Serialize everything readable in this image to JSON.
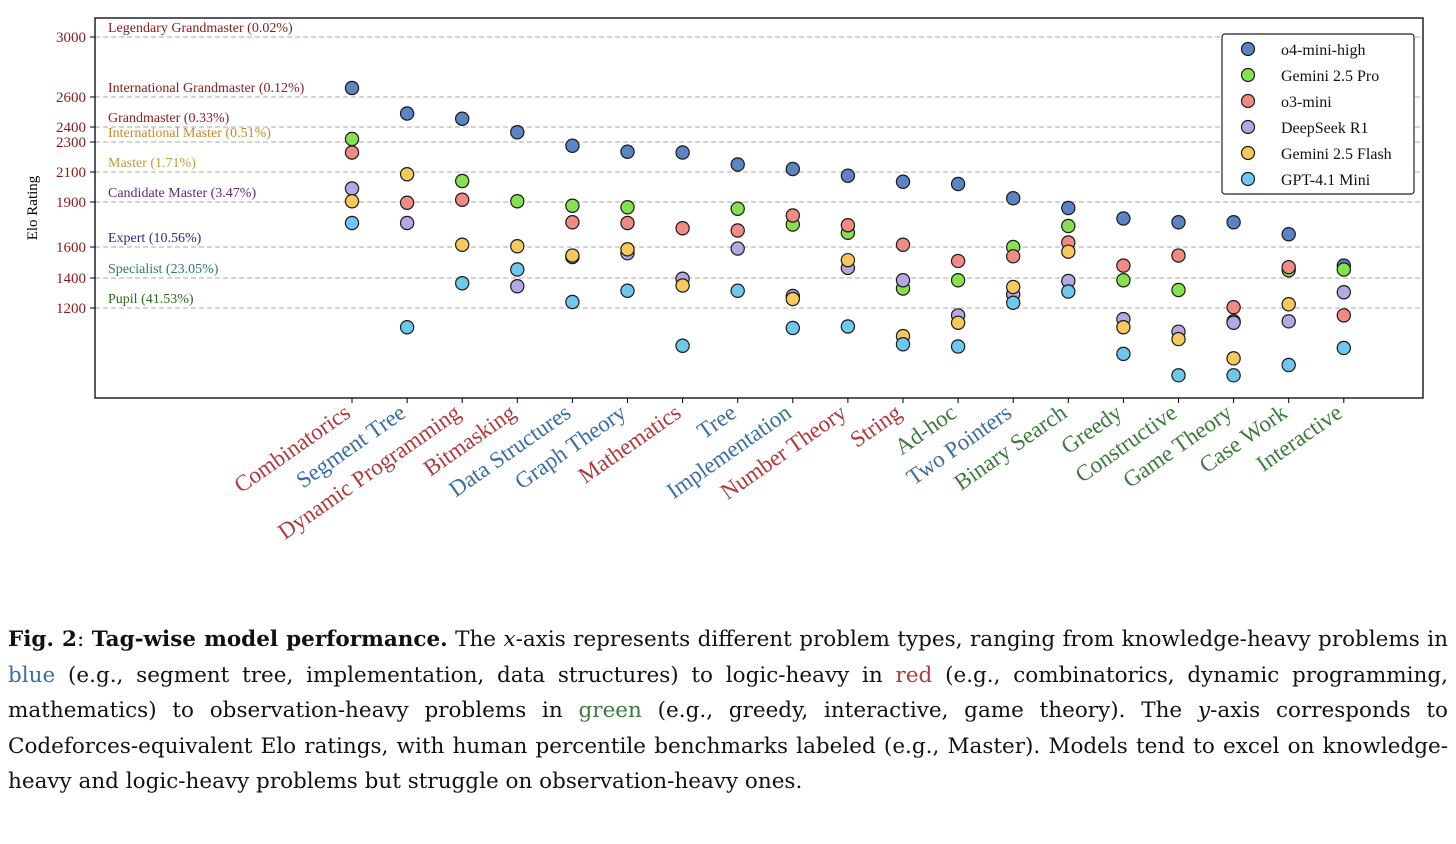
{
  "chart_data": {
    "type": "scatter",
    "ylabel": "Elo Rating",
    "y_ticks": [
      1200,
      1400,
      1600,
      1900,
      2100,
      2300,
      2400,
      2600,
      3000
    ],
    "grid": "horizontal dashed at tier thresholds",
    "legend_position": "top-right",
    "categories": [
      {
        "name": "Combinatorics",
        "group": "red"
      },
      {
        "name": "Segment Tree",
        "group": "blue"
      },
      {
        "name": "Dynamic Programming",
        "group": "red"
      },
      {
        "name": "Bitmasking",
        "group": "red"
      },
      {
        "name": "Data Structures",
        "group": "blue"
      },
      {
        "name": "Graph Theory",
        "group": "blue"
      },
      {
        "name": "Mathematics",
        "group": "red"
      },
      {
        "name": "Tree",
        "group": "blue"
      },
      {
        "name": "Implementation",
        "group": "blue"
      },
      {
        "name": "Number Theory",
        "group": "red"
      },
      {
        "name": "String",
        "group": "red"
      },
      {
        "name": "Ad-hoc",
        "group": "green"
      },
      {
        "name": "Two Pointers",
        "group": "blue"
      },
      {
        "name": "Binary Search",
        "group": "green"
      },
      {
        "name": "Greedy",
        "group": "green"
      },
      {
        "name": "Constructive",
        "group": "green"
      },
      {
        "name": "Game Theory",
        "group": "green"
      },
      {
        "name": "Case Work",
        "group": "green"
      },
      {
        "name": "Interactive",
        "group": "green"
      }
    ],
    "group_colors": {
      "red": "#b03a3a",
      "blue": "#3a6ea5",
      "green": "#3d7a3d"
    },
    "tiers": [
      {
        "label": "Legendary Grandmaster (0.02%)",
        "rating": 3000,
        "color": "#8b1a1a"
      },
      {
        "label": "International Grandmaster (0.12%)",
        "rating": 2600,
        "color": "#8b1a1a"
      },
      {
        "label": "Grandmaster (0.33%)",
        "rating": 2400,
        "color": "#8b1a1a"
      },
      {
        "label": "International Master (0.51%)",
        "rating": 2300,
        "color": "#c28a2a"
      },
      {
        "label": "Master (1.71%)",
        "rating": 2100,
        "color": "#b5a23a"
      },
      {
        "label": "Candidate Master (3.47%)",
        "rating": 1900,
        "color": "#5a2a7a"
      },
      {
        "label": "Expert (10.56%)",
        "rating": 1600,
        "color": "#2a2a8a"
      },
      {
        "label": "Specialist (23.05%)",
        "rating": 1400,
        "color": "#2a7a6a"
      },
      {
        "label": "Pupil (41.53%)",
        "rating": 1200,
        "color": "#2a6a1a"
      }
    ],
    "series": [
      {
        "name": "o4-mini-high",
        "color": "#5b84c4",
        "values": [
          2660,
          2490,
          2455,
          2365,
          2275,
          2235,
          2230,
          2150,
          2120,
          2075,
          2035,
          2020,
          1925,
          1860,
          1790,
          1765,
          1765,
          1685,
          1480
        ]
      },
      {
        "name": "Gemini 2.5 Pro",
        "color": "#86e04f",
        "values": [
          2320,
          0,
          2040,
          1905,
          1875,
          1865,
          0,
          1855,
          1750,
          1695,
          1330,
          1385,
          1600,
          1740,
          1385,
          1320,
          1110,
          1450,
          1455
        ]
      },
      {
        "name": "o3-mini",
        "color": "#f08a84",
        "values": [
          2230,
          1895,
          1915,
          0,
          1765,
          1760,
          1725,
          1710,
          1810,
          1745,
          1615,
          1510,
          1540,
          1630,
          1480,
          1545,
          1205,
          1470,
          1150
        ]
      },
      {
        "name": "DeepSeek R1",
        "color": "#b7a6e6",
        "values": [
          1990,
          1760,
          0,
          1345,
          1535,
          1560,
          1395,
          1590,
          1280,
          1465,
          1385,
          1150,
          1290,
          1380,
          1125,
          1040,
          1100,
          1110,
          1305
        ]
      },
      {
        "name": "Gemini 2.5 Flash",
        "color": "#f7c95a",
        "values": [
          1905,
          2085,
          1615,
          1605,
          1545,
          1585,
          1350,
          0,
          1260,
          1515,
          1010,
          1100,
          1340,
          1570,
          1070,
          990,
          860,
          1225,
          0
        ]
      },
      {
        "name": "GPT-4.1 Mini",
        "color": "#6ec8ee",
        "values": [
          1760,
          1070,
          1365,
          1455,
          1240,
          1315,
          945,
          1315,
          1065,
          1075,
          955,
          940,
          1235,
          1310,
          890,
          745,
          745,
          815,
          930
        ]
      }
    ]
  },
  "caption": {
    "fig_label": "Fig. 2",
    "fig_colon": ":",
    "fig_title": "Tag-wise model performance.",
    "part1": " The ",
    "x_var": "x",
    "part2": "-axis represents different problem types, ranging from knowledge-heavy problems in ",
    "blue_word": "blue",
    "part3": " (e.g., segment tree, implementation, data structures) to logic-heavy in ",
    "red_word": "red",
    "part4": " (e.g., combinatorics, dynamic programming, mathematics) to observation-heavy problems in ",
    "green_word": "green",
    "part5": " (e.g., greedy, interactive, game theory). The ",
    "y_var": "y",
    "part6": "-axis corresponds to Codeforces-equivalent Elo ratings, with human percentile benchmarks labeled (e.g., Master). Models tend to excel on knowledge-heavy and logic-heavy problems but struggle on observation-heavy ones.",
    "blue_color": "#3a6ea5",
    "red_color": "#b03a3a",
    "green_color": "#3d7a3d"
  }
}
